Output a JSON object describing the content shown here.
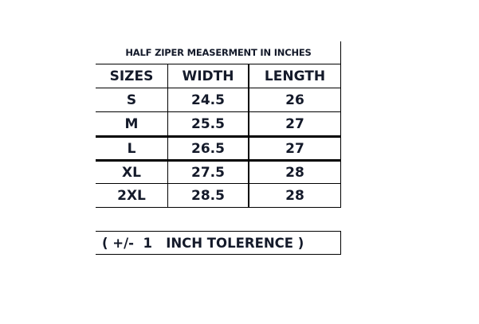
{
  "title": "HALF ZIPER MEASERMENT IN INCHES",
  "headers": [
    "SIZES",
    "WIDTH",
    "LENGTH"
  ],
  "rows": [
    [
      "S",
      "24.5",
      "26"
    ],
    [
      "M",
      "25.5",
      "27"
    ],
    [
      "L",
      "26.5",
      "27"
    ],
    [
      "XL",
      "27.5",
      "28"
    ],
    [
      "2XL",
      "28.5",
      "28"
    ]
  ],
  "tolerance": "( +/-  1   INCH TOLERENCE )",
  "colors": {
    "text": "#141a2a",
    "border": "#000000"
  }
}
